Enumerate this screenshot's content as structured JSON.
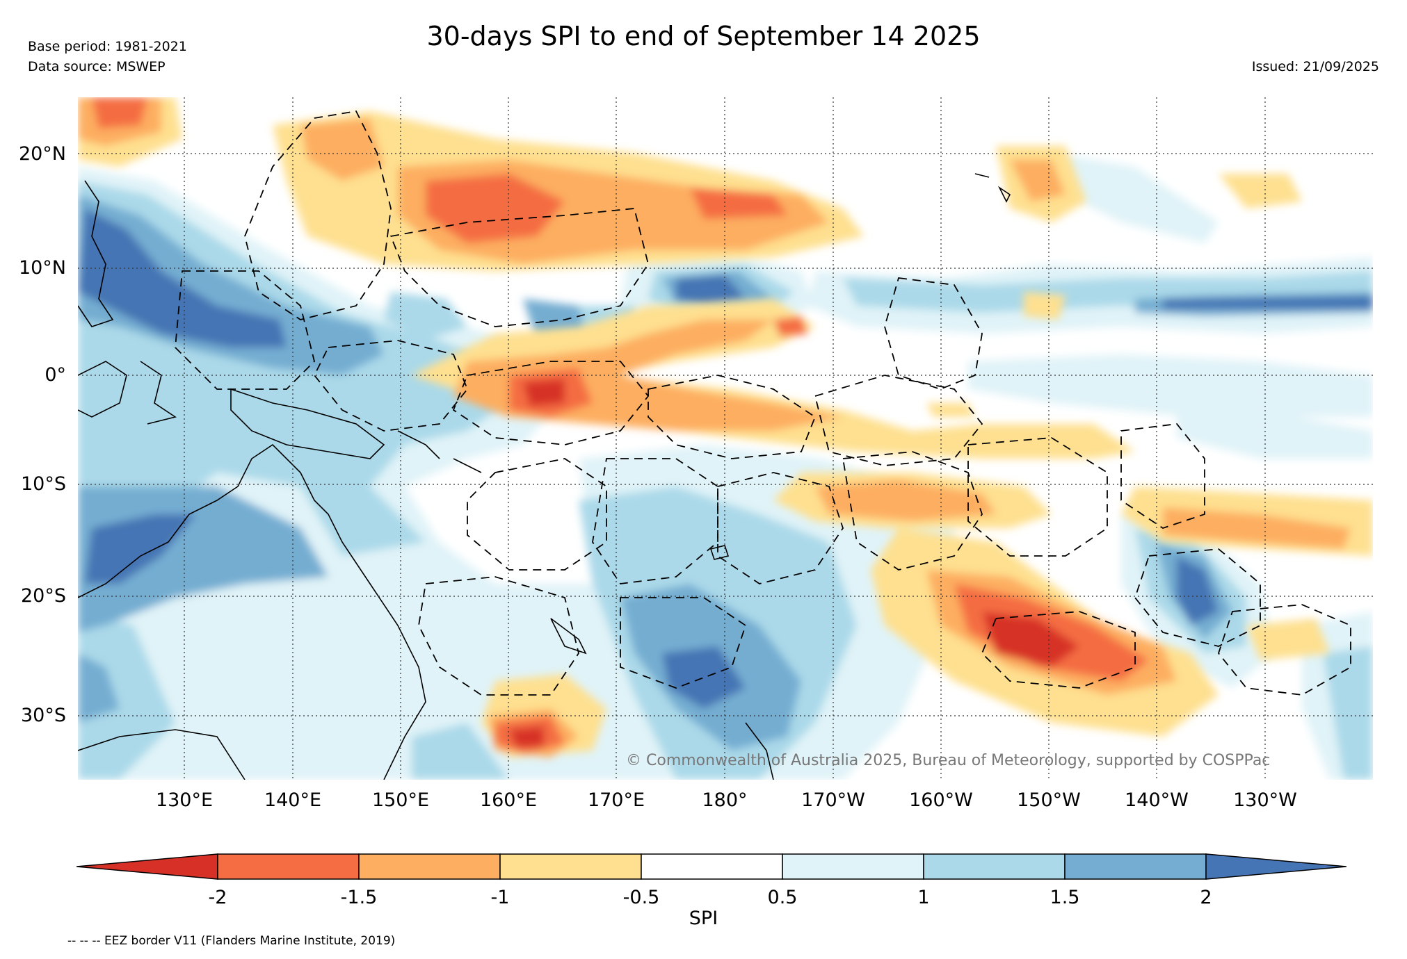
{
  "title": "30-days SPI to end of September 14 2025",
  "base_period": "Base period: 1981-2021",
  "data_source": "Data source: MSWEP",
  "issued": "Issued: 21/09/2025",
  "copyright": "© Commonwealth of Australia 2025, Bureau of Meteorology, supported by COSPPac",
  "colorbar_label": "SPI",
  "eez_note": "-- -- -- EEZ border V11 (Flanders Marine Institute, 2019)",
  "lat_labels": [
    "20°N",
    "10°N",
    "0°",
    "10°S",
    "20°S",
    "30°S"
  ],
  "lon_labels": [
    "130°E",
    "140°E",
    "150°E",
    "160°E",
    "170°E",
    "180°",
    "170°W",
    "160°W",
    "150°W",
    "140°W",
    "130°W"
  ],
  "colorbar_ticks": [
    "-2",
    "-1.5",
    "-1",
    "-0.5",
    "0.5",
    "1",
    "1.5",
    "2"
  ],
  "colorbar_colors": [
    "#d73027",
    "#f46d43",
    "#fdae61",
    "#fee090",
    "#ffffff",
    "#e0f3f8",
    "#abd9e9",
    "#74add1",
    "#4575b4"
  ],
  "map_extent": {
    "lon_min": 120,
    "lon_max": 240,
    "lat_min": -36,
    "lat_max": 25
  }
}
